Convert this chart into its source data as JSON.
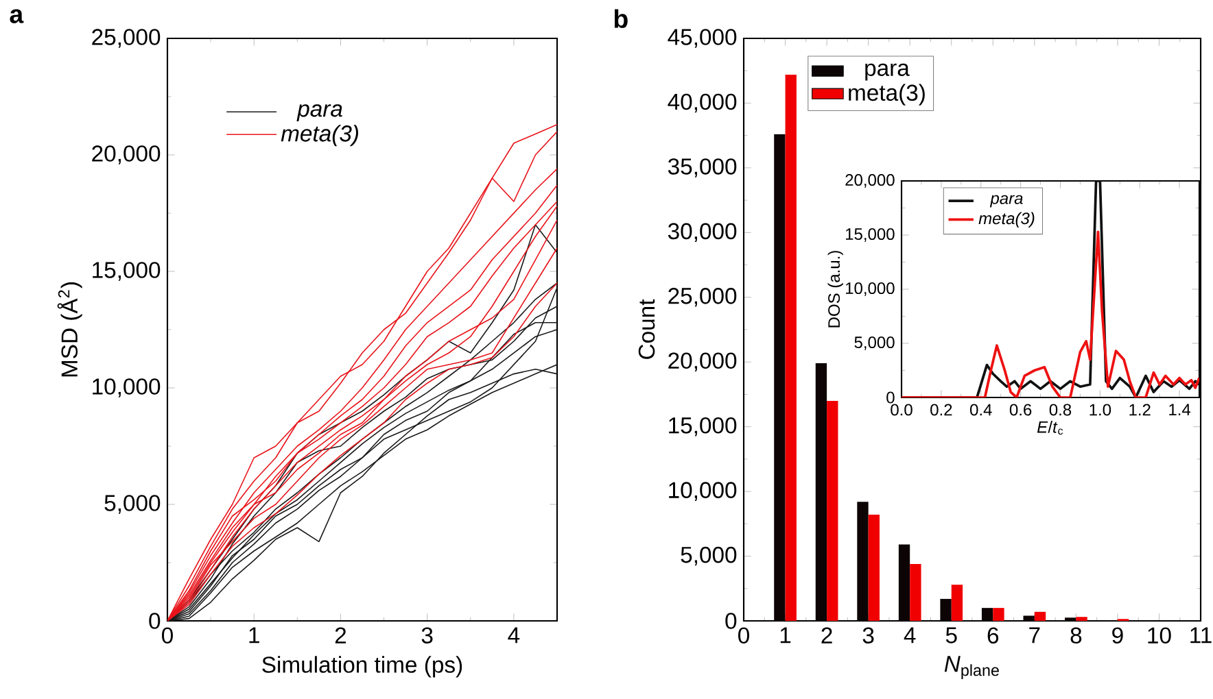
{
  "chart_data": [
    {
      "type": "line",
      "title": "a",
      "xlabel": "Simulation time (ps)",
      "ylabel": "MSD (Å$^{2}$)",
      "xlim": [
        0,
        4.5
      ],
      "ylim": [
        0,
        25000
      ],
      "xticks": [
        0,
        1,
        2,
        3,
        4
      ],
      "yticks": [
        0,
        {
          "value": 5000,
          "label": "5,000"
        },
        {
          "value": 10000,
          "label": "10,000"
        },
        {
          "value": 15000,
          "label": "15,000"
        },
        {
          "value": 20000,
          "label": "20,000"
        },
        {
          "value": 25000,
          "label": "25,000"
        }
      ],
      "legend": "top left",
      "x": [
        0,
        0.25,
        0.5,
        0.75,
        1,
        1.25,
        1.5,
        1.75,
        2,
        2.25,
        2.5,
        2.75,
        3,
        3.25,
        3.5,
        3.75,
        4,
        4.25,
        4.5
      ],
      "series": [
        {
          "name": "para",
          "color": "#1a1a1a",
          "values": [
            0,
            800,
            2000,
            3000,
            3800,
            4800,
            5500,
            6300,
            7000,
            7800,
            8500,
            9200,
            9800,
            10500,
            11200,
            12000,
            12800,
            13800,
            14500
          ]
        },
        {
          "color": "#1a1a1a",
          "values": [
            0,
            400,
            1500,
            2800,
            3500,
            4500,
            5000,
            5800,
            6500,
            7000,
            8000,
            8600,
            9000,
            9800,
            10300,
            10800,
            11500,
            12200,
            12500
          ]
        },
        {
          "color": "#1a1a1a",
          "values": [
            0,
            200,
            1200,
            2300,
            3000,
            3600,
            4200,
            5000,
            5800,
            6400,
            7100,
            7800,
            8200,
            8800,
            9300,
            9800,
            10200,
            10600,
            11000
          ]
        },
        {
          "color": "#1a1a1a",
          "values": [
            0,
            600,
            1800,
            3300,
            4500,
            5500,
            6800,
            7300,
            7500,
            8300,
            9000,
            9600,
            10400,
            10800,
            11000,
            11200,
            12000,
            13000,
            13500
          ]
        },
        {
          "color": "#1a1a1a",
          "values": [
            0,
            100,
            800,
            1800,
            2600,
            3500,
            4000,
            3400,
            5500,
            6200,
            7200,
            8000,
            8800,
            9500,
            9800,
            10200,
            10600,
            10800,
            10600
          ]
        },
        {
          "color": "#1a1a1a",
          "values": [
            0,
            900,
            2200,
            3500,
            4800,
            5800,
            7200,
            8000,
            8500,
            9000,
            9700,
            10500,
            11200,
            12000,
            11500,
            12800,
            14200,
            17000,
            15800
          ]
        },
        {
          "color": "#1a1a1a",
          "values": [
            0,
            500,
            1600,
            2700,
            3700,
            4600,
            5200,
            6000,
            6800,
            7600,
            8300,
            8900,
            9400,
            9900,
            10300,
            11300,
            12300,
            12800,
            12800
          ]
        },
        {
          "color": "#1a1a1a",
          "values": [
            0,
            300,
            1300,
            2500,
            3300,
            4200,
            4800,
            5600,
            6200,
            7000,
            7800,
            8200,
            8600,
            9000,
            9400,
            10000,
            11000,
            12000,
            14300
          ]
        },
        {
          "name": "meta(3)",
          "color": "#e8141b",
          "values": [
            0,
            1800,
            3500,
            5000,
            7000,
            7500,
            8500,
            9500,
            10500,
            11000,
            12000,
            13500,
            15000,
            16000,
            17500,
            19000,
            20500,
            20900,
            21300
          ]
        },
        {
          "color": "#e8141b",
          "values": [
            0,
            1500,
            3200,
            4800,
            6000,
            7000,
            8500,
            9000,
            10200,
            11500,
            12500,
            13200,
            14500,
            15800,
            17200,
            19000,
            18000,
            20000,
            21000
          ]
        },
        {
          "color": "#e8141b",
          "values": [
            0,
            1200,
            2800,
            4200,
            5500,
            6500,
            7500,
            8200,
            9000,
            10000,
            11200,
            12500,
            13500,
            14500,
            15500,
            16500,
            17500,
            18500,
            19400
          ]
        },
        {
          "color": "#e8141b",
          "values": [
            0,
            1000,
            2500,
            3800,
            5000,
            6200,
            7200,
            8000,
            8800,
            9500,
            10500,
            11800,
            12800,
            13500,
            14200,
            15500,
            16500,
            17500,
            18700
          ]
        },
        {
          "color": "#e8141b",
          "values": [
            0,
            1300,
            3000,
            4500,
            5200,
            6000,
            7200,
            7800,
            8500,
            9200,
            10000,
            11000,
            12200,
            12800,
            13500,
            14800,
            16000,
            17000,
            18000
          ]
        },
        {
          "color": "#e8141b",
          "values": [
            0,
            800,
            2200,
            3600,
            4800,
            5800,
            6800,
            7500,
            8200,
            8800,
            9500,
            10300,
            11000,
            11500,
            12200,
            13500,
            15000,
            16500,
            17800
          ]
        },
        {
          "color": "#e8141b",
          "values": [
            0,
            1100,
            2600,
            4000,
            5000,
            5500,
            6500,
            7200,
            8000,
            8500,
            9500,
            10500,
            11200,
            12000,
            12500,
            13000,
            13800,
            15500,
            17200
          ]
        },
        {
          "color": "#e8141b",
          "values": [
            0,
            900,
            2400,
            3400,
            4400,
            5000,
            6000,
            7000,
            7800,
            8400,
            9200,
            10000,
            10800,
            11000,
            11200,
            11500,
            13000,
            14500,
            16000
          ]
        },
        {
          "color": "#e8141b",
          "values": [
            0,
            700,
            2000,
            3200,
            4000,
            4600,
            5400,
            6300,
            7100,
            7800,
            8500,
            9500,
            10200,
            10800,
            11000,
            11300,
            12200,
            13500,
            14500
          ]
        }
      ]
    },
    {
      "type": "bar",
      "title": "b",
      "xlabel": "*N*$_{plane}$",
      "ylabel": "Count",
      "xlim": [
        0,
        11
      ],
      "ylim": [
        0,
        45000
      ],
      "xticks": [
        0,
        1,
        2,
        3,
        4,
        5,
        6,
        7,
        8,
        9,
        10,
        11
      ],
      "yticks": [
        0,
        {
          "value": 5000,
          "label": "5,000"
        },
        {
          "value": 10000,
          "label": "10,000"
        },
        {
          "value": 15000,
          "label": "15,000"
        },
        {
          "value": 20000,
          "label": "20,000"
        },
        {
          "value": 25000,
          "label": "25,000"
        },
        {
          "value": 30000,
          "label": "30,000"
        },
        {
          "value": 35000,
          "label": "35,000"
        },
        {
          "value": 40000,
          "label": "40,000"
        },
        {
          "value": 45000,
          "label": "45,000"
        }
      ],
      "legend": "top left",
      "x": [
        1,
        2,
        3,
        4,
        5,
        6,
        7,
        8,
        9
      ],
      "series": [
        {
          "name": "para",
          "color": "#0d0505",
          "values": [
            37600,
            19900,
            9200,
            5900,
            1700,
            1000,
            400,
            250,
            50
          ]
        },
        {
          "name": "meta(3)",
          "color": "#f00000",
          "values": [
            42200,
            17000,
            8200,
            4400,
            2800,
            1000,
            700,
            300,
            150
          ]
        }
      ]
    },
    {
      "type": "line",
      "xlabel": "*E*/*t*$_{c}$",
      "ylabel": "DOS (a.u.)",
      "xlim": [
        0,
        1.5
      ],
      "ylim": [
        0,
        20000
      ],
      "xticks": [
        {
          "value": 0,
          "label": "0.0"
        },
        0.2,
        0.4,
        0.6,
        0.8,
        {
          "value": 1,
          "label": "1.0"
        },
        1.2,
        1.4
      ],
      "yticks": [
        0,
        {
          "value": 5000,
          "label": "5,000"
        },
        {
          "value": 10000,
          "label": "10,000"
        },
        {
          "value": 15000,
          "label": "15,000"
        },
        {
          "value": 20000,
          "label": "20,000"
        }
      ],
      "legend": "top left",
      "series": [
        {
          "name": "para",
          "color": "#111111",
          "x": [
            0,
            0.38,
            0.43,
            0.46,
            0.5,
            0.53,
            0.57,
            0.6,
            0.65,
            0.7,
            0.75,
            0.8,
            0.85,
            0.9,
            0.95,
            0.98,
            1.0,
            1.03,
            1.06,
            1.1,
            1.15,
            1.18,
            1.23,
            1.27,
            1.32,
            1.36,
            1.4,
            1.45,
            1.48,
            1.5
          ],
          "values": [
            0,
            0,
            3000,
            2200,
            1500,
            1000,
            1500,
            800,
            1500,
            800,
            1500,
            800,
            1500,
            1000,
            1200,
            20000,
            20000,
            1500,
            800,
            1800,
            1000,
            0,
            2000,
            500,
            1500,
            1000,
            1600,
            800,
            1500,
            1200
          ]
        },
        {
          "name": "meta(3)",
          "color": "#ee1111",
          "x": [
            0,
            0.42,
            0.45,
            0.48,
            0.52,
            0.55,
            0.58,
            0.62,
            0.67,
            0.72,
            0.76,
            0.8,
            0.85,
            0.9,
            0.93,
            0.95,
            0.99,
            1.01,
            1.04,
            1.08,
            1.12,
            1.15,
            1.18,
            1.23,
            1.27,
            1.3,
            1.33,
            1.37,
            1.4,
            1.43,
            1.46,
            1.48,
            1.5
          ],
          "values": [
            0,
            0,
            2500,
            4800,
            2500,
            500,
            0,
            2000,
            2500,
            2800,
            1000,
            0,
            0,
            4200,
            5200,
            3500,
            15300,
            8000,
            1000,
            4300,
            3500,
            1500,
            0,
            0,
            2300,
            1200,
            2000,
            1200,
            1800,
            1200,
            1600,
            900,
            1800
          ]
        }
      ]
    }
  ]
}
